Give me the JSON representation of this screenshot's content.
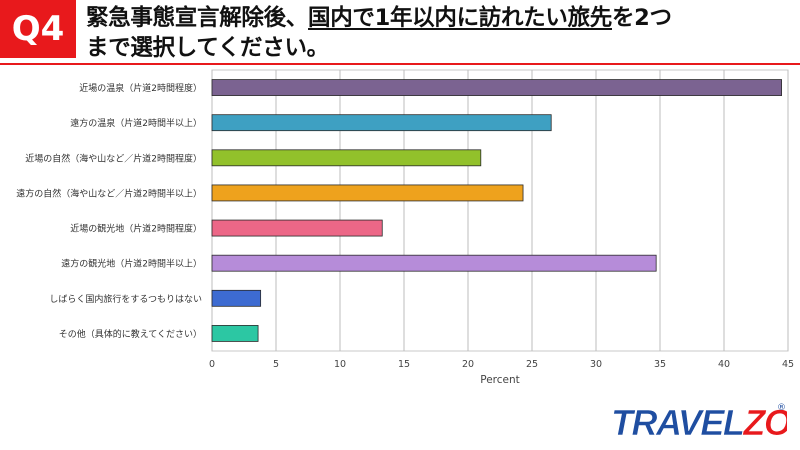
{
  "header": {
    "badge": "Q4",
    "line1_prefix": "緊急事態宣言解除後、",
    "line1_underlined": "国内で1年以内に訪れたい旅先",
    "line1_suffix": "を2つ",
    "line2": "まで選択してください。"
  },
  "brand": {
    "logo_text": "TRAVELZOO",
    "logo_mark": "®",
    "colors": {
      "blue": "#1f4ea1",
      "red": "#e8191c"
    }
  },
  "chart_data": {
    "type": "bar",
    "orientation": "horizontal",
    "categories": [
      "近場の温泉（片道2時間程度）",
      "遠方の温泉（片道2時間半以上）",
      "近場の自然（海や山など／片道2時間程度）",
      "遠方の自然（海や山など／片道2時間半以上）",
      "近場の観光地（片道2時間程度）",
      "遠方の観光地（片道2時間半以上）",
      "しばらく国内旅行をするつもりはない",
      "その他（具体的に教えてください）"
    ],
    "values": [
      44.5,
      26.5,
      21,
      24.3,
      13.3,
      34.7,
      3.8,
      3.6
    ],
    "colors": [
      "#7b6391",
      "#3ea0c2",
      "#92c12b",
      "#eea21d",
      "#ec6787",
      "#b68cd9",
      "#3d6bd1",
      "#2cc7a3"
    ],
    "xlabel": "Percent",
    "xlim": [
      0,
      45
    ],
    "xticks": [
      0,
      5,
      10,
      15,
      20,
      25,
      30,
      35,
      40,
      45
    ],
    "grid": "vertical"
  }
}
